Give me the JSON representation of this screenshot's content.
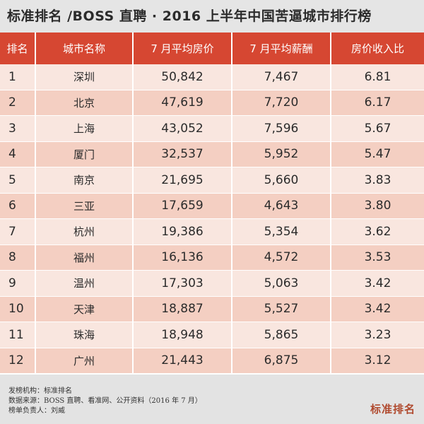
{
  "title": "标准排名 /BOSS 直聘 · 2016 上半年中国苦逼城市排行榜",
  "headers": [
    "排名",
    "城市名称",
    "7 月平均房价",
    "7 月平均薪酬",
    "房价收入比"
  ],
  "rows": [
    {
      "rank": "1",
      "city": "深圳",
      "price": "50,842",
      "salary": "7,467",
      "ratio": "6.81"
    },
    {
      "rank": "2",
      "city": "北京",
      "price": "47,619",
      "salary": "7,720",
      "ratio": "6.17"
    },
    {
      "rank": "3",
      "city": "上海",
      "price": "43,052",
      "salary": "7,596",
      "ratio": "5.67"
    },
    {
      "rank": "4",
      "city": "厦门",
      "price": "32,537",
      "salary": "5,952",
      "ratio": "5.47"
    },
    {
      "rank": "5",
      "city": "南京",
      "price": "21,695",
      "salary": "5,660",
      "ratio": "3.83"
    },
    {
      "rank": "6",
      "city": "三亚",
      "price": "17,659",
      "salary": "4,643",
      "ratio": "3.80"
    },
    {
      "rank": "7",
      "city": "杭州",
      "price": "19,386",
      "salary": "5,354",
      "ratio": "3.62"
    },
    {
      "rank": "8",
      "city": "福州",
      "price": "16,136",
      "salary": "4,572",
      "ratio": "3.53"
    },
    {
      "rank": "9",
      "city": "温州",
      "price": "17,303",
      "salary": "5,063",
      "ratio": "3.42"
    },
    {
      "rank": "10",
      "city": "天津",
      "price": "18,887",
      "salary": "5,527",
      "ratio": "3.42"
    },
    {
      "rank": "11",
      "city": "珠海",
      "price": "18,948",
      "salary": "5,865",
      "ratio": "3.23"
    },
    {
      "rank": "12",
      "city": "广州",
      "price": "21,443",
      "salary": "6,875",
      "ratio": "3.12"
    }
  ],
  "footer": {
    "publisher": "发榜机构：标准排名",
    "source": "数据来源：BOSS 直聘、看准网、公开资料（2016 年 7 月）",
    "editor": "榜单负责人：刘威"
  },
  "logo": "标准排名",
  "colors": {
    "header_bg": "#d64732",
    "row_light": "#f9e6df",
    "row_dark": "#f4cfc2",
    "title_bg": "#e5e5e5",
    "logo": "#b04a2f"
  }
}
